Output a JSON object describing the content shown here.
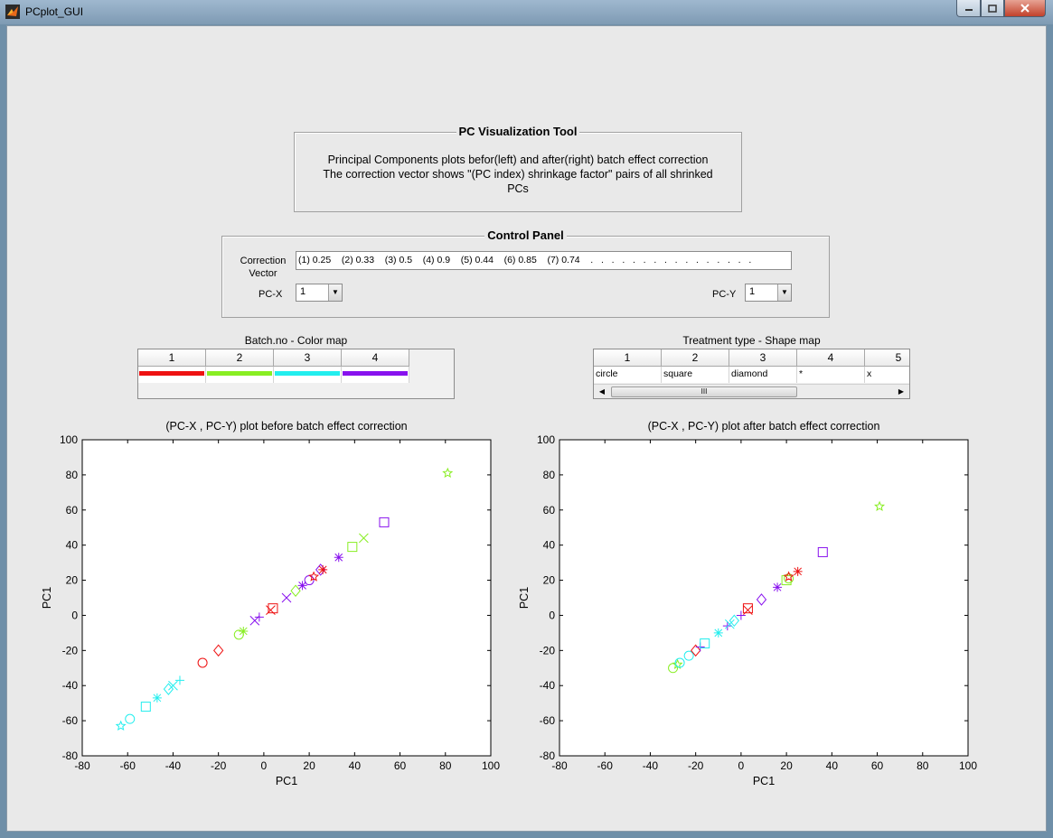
{
  "window": {
    "title": "PCplot_GUI"
  },
  "info_panel": {
    "title": "PC Visualization Tool",
    "lines": [
      "Principal Components plots befor(left) and after(right) batch effect correction",
      "The correction vector shows \"(PC index) shrinkage factor\" pairs of all shrinked",
      "PCs"
    ]
  },
  "control_panel": {
    "title": "Control Panel",
    "correction_label_1": "Correction",
    "correction_label_2": "Vector",
    "correction_value": "(1) 0.25    (2) 0.33    (3) 0.5    (4) 0.9    (5) 0.44    (6) 0.85    (7) 0.74    .   .   .   .   .   .   .   .   .   .   .   .   .   .   .   .",
    "pcx_label": "PC-X",
    "pcx_value": "1",
    "pcy_label": "PC-Y",
    "pcy_value": "1"
  },
  "color_map": {
    "title": "Batch.no - Color map",
    "columns": [
      "1",
      "2",
      "3",
      "4"
    ],
    "colors": [
      "#ee1111",
      "#88ee22",
      "#22eeee",
      "#8811ee"
    ]
  },
  "shape_map": {
    "title": "Treatment type - Shape map",
    "columns": [
      "1",
      "2",
      "3",
      "4",
      "5"
    ],
    "values": [
      "circle",
      "square",
      "diamond",
      "*",
      "x"
    ],
    "scroll_thumb": "III"
  },
  "chart_data": [
    {
      "type": "scatter",
      "title": "(PC-X , PC-Y) plot before batch effect correction",
      "xlabel": "PC1",
      "ylabel": "PC1",
      "xlim": [
        -80,
        100
      ],
      "ylim": [
        -80,
        100
      ],
      "ticks": [
        -80,
        -60,
        -40,
        -20,
        0,
        20,
        40,
        60,
        80,
        100
      ],
      "grid": false,
      "points": [
        {
          "x": -63,
          "y": -63,
          "batch": 3,
          "marker": "star"
        },
        {
          "x": -59,
          "y": -59,
          "batch": 3,
          "marker": "circle"
        },
        {
          "x": -52,
          "y": -52,
          "batch": 3,
          "marker": "square"
        },
        {
          "x": -47,
          "y": -47,
          "batch": 3,
          "marker": "asterisk"
        },
        {
          "x": -42,
          "y": -42,
          "batch": 3,
          "marker": "diamond"
        },
        {
          "x": -40,
          "y": -40,
          "batch": 3,
          "marker": "x"
        },
        {
          "x": -37,
          "y": -37,
          "batch": 3,
          "marker": "plus"
        },
        {
          "x": -27,
          "y": -27,
          "batch": 1,
          "marker": "circle"
        },
        {
          "x": -20,
          "y": -20,
          "batch": 1,
          "marker": "diamond"
        },
        {
          "x": -11,
          "y": -11,
          "batch": 2,
          "marker": "circle"
        },
        {
          "x": -9,
          "y": -9,
          "batch": 2,
          "marker": "asterisk"
        },
        {
          "x": -4,
          "y": -3,
          "batch": 4,
          "marker": "x"
        },
        {
          "x": -2,
          "y": -1,
          "batch": 4,
          "marker": "plus"
        },
        {
          "x": 3,
          "y": 3,
          "batch": 1,
          "marker": "x"
        },
        {
          "x": 4,
          "y": 4,
          "batch": 1,
          "marker": "square"
        },
        {
          "x": 10,
          "y": 10,
          "batch": 4,
          "marker": "x"
        },
        {
          "x": 14,
          "y": 14,
          "batch": 2,
          "marker": "diamond"
        },
        {
          "x": 17,
          "y": 17,
          "batch": 4,
          "marker": "asterisk"
        },
        {
          "x": 20,
          "y": 20,
          "batch": 4,
          "marker": "circle"
        },
        {
          "x": 22,
          "y": 22,
          "batch": 1,
          "marker": "star"
        },
        {
          "x": 25,
          "y": 26,
          "batch": 4,
          "marker": "diamond"
        },
        {
          "x": 26,
          "y": 26,
          "batch": 1,
          "marker": "asterisk"
        },
        {
          "x": 33,
          "y": 33,
          "batch": 4,
          "marker": "asterisk"
        },
        {
          "x": 39,
          "y": 39,
          "batch": 2,
          "marker": "square"
        },
        {
          "x": 44,
          "y": 44,
          "batch": 2,
          "marker": "x"
        },
        {
          "x": 53,
          "y": 53,
          "batch": 4,
          "marker": "square"
        },
        {
          "x": 81,
          "y": 81,
          "batch": 2,
          "marker": "star"
        }
      ]
    },
    {
      "type": "scatter",
      "title": "(PC-X , PC-Y) plot after batch effect correction",
      "xlabel": "PC1",
      "ylabel": "PC1",
      "xlim": [
        -80,
        100
      ],
      "ylim": [
        -80,
        100
      ],
      "ticks": [
        -80,
        -60,
        -40,
        -20,
        0,
        20,
        40,
        60,
        80,
        100
      ],
      "grid": false,
      "points": [
        {
          "x": -30,
          "y": -30,
          "batch": 2,
          "marker": "circle"
        },
        {
          "x": -28,
          "y": -28,
          "batch": 2,
          "marker": "star"
        },
        {
          "x": -27,
          "y": -27,
          "batch": 3,
          "marker": "circle"
        },
        {
          "x": -23,
          "y": -23,
          "batch": 3,
          "marker": "circle"
        },
        {
          "x": -20,
          "y": -20,
          "batch": 1,
          "marker": "diamond"
        },
        {
          "x": -18,
          "y": -18,
          "batch": 4,
          "marker": "plus"
        },
        {
          "x": -16,
          "y": -16,
          "batch": 3,
          "marker": "square"
        },
        {
          "x": -10,
          "y": -10,
          "batch": 3,
          "marker": "asterisk"
        },
        {
          "x": -6,
          "y": -6,
          "batch": 4,
          "marker": "plus"
        },
        {
          "x": -5,
          "y": -5,
          "batch": 3,
          "marker": "x"
        },
        {
          "x": -3,
          "y": -3,
          "batch": 3,
          "marker": "diamond"
        },
        {
          "x": 0,
          "y": 0,
          "batch": 4,
          "marker": "plus"
        },
        {
          "x": 3,
          "y": 3,
          "batch": 1,
          "marker": "x"
        },
        {
          "x": 3,
          "y": 4,
          "batch": 1,
          "marker": "square"
        },
        {
          "x": 9,
          "y": 9,
          "batch": 4,
          "marker": "diamond"
        },
        {
          "x": 16,
          "y": 16,
          "batch": 4,
          "marker": "asterisk"
        },
        {
          "x": 20,
          "y": 20,
          "batch": 2,
          "marker": "square"
        },
        {
          "x": 21,
          "y": 21,
          "batch": 2,
          "marker": "circle"
        },
        {
          "x": 21,
          "y": 22,
          "batch": 1,
          "marker": "star"
        },
        {
          "x": 25,
          "y": 25,
          "batch": 1,
          "marker": "asterisk"
        },
        {
          "x": 36,
          "y": 36,
          "batch": 4,
          "marker": "square"
        },
        {
          "x": 61,
          "y": 62,
          "batch": 2,
          "marker": "star"
        }
      ]
    }
  ]
}
